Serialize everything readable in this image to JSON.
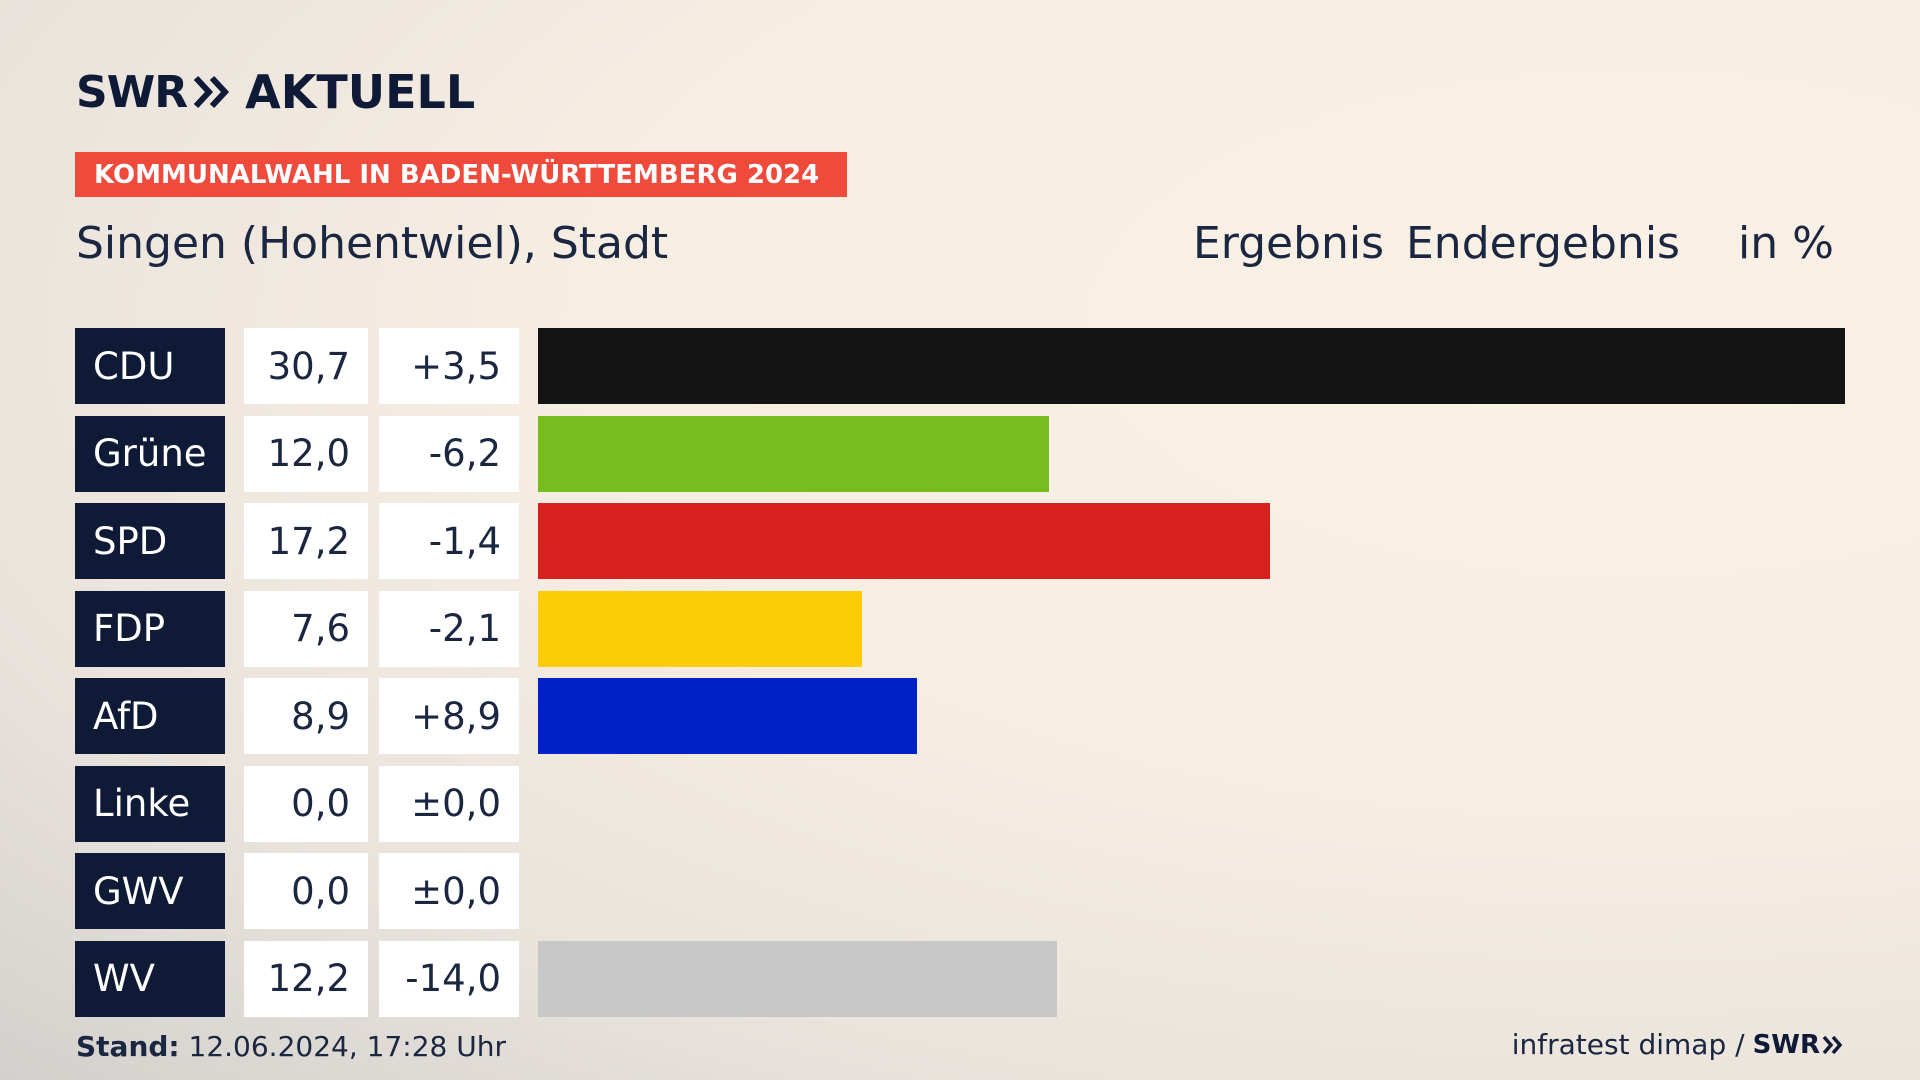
{
  "brand": {
    "logo_left": "SWR",
    "logo_right": "AKTUELL",
    "footer_logo": "SWR"
  },
  "banner": {
    "label": "KOMMUNALWAHL IN BADEN-WÜRTTEMBERG 2024"
  },
  "header": {
    "place": "Singen (Hohentwiel), Stadt",
    "col1": "Ergebnis",
    "col2": "Endergebnis",
    "col3": "in %"
  },
  "chart_data": {
    "type": "bar",
    "title": "Singen (Hohentwiel), Stadt",
    "categories": [
      "CDU",
      "Grüne",
      "SPD",
      "FDP",
      "AfD",
      "Linke",
      "GWV",
      "WV"
    ],
    "values": [
      30.7,
      12.0,
      17.2,
      7.6,
      8.9,
      0.0,
      0.0,
      12.2
    ],
    "value_labels": [
      "30,7",
      "12,0",
      "17,2",
      "7,6",
      "8,9",
      "0,0",
      "0,0",
      "12,2"
    ],
    "diff_labels": [
      "+3,5",
      "-6,2",
      "-1,4",
      "-2,1",
      "+8,9",
      "±0,0",
      "±0,0",
      "-14,0"
    ],
    "colors": [
      "#141414",
      "#78bd1e",
      "#d7211e",
      "#fecd0a",
      "#0021c8",
      "#be3075",
      "#1e7a90",
      "#c8c8c8"
    ],
    "xlim": [
      0,
      30.7
    ],
    "grid": false
  },
  "footer": {
    "stand_label": "Stand:",
    "stand_value": " 12.06.2024, 17:28 Uhr",
    "source": "infratest dimap /"
  }
}
